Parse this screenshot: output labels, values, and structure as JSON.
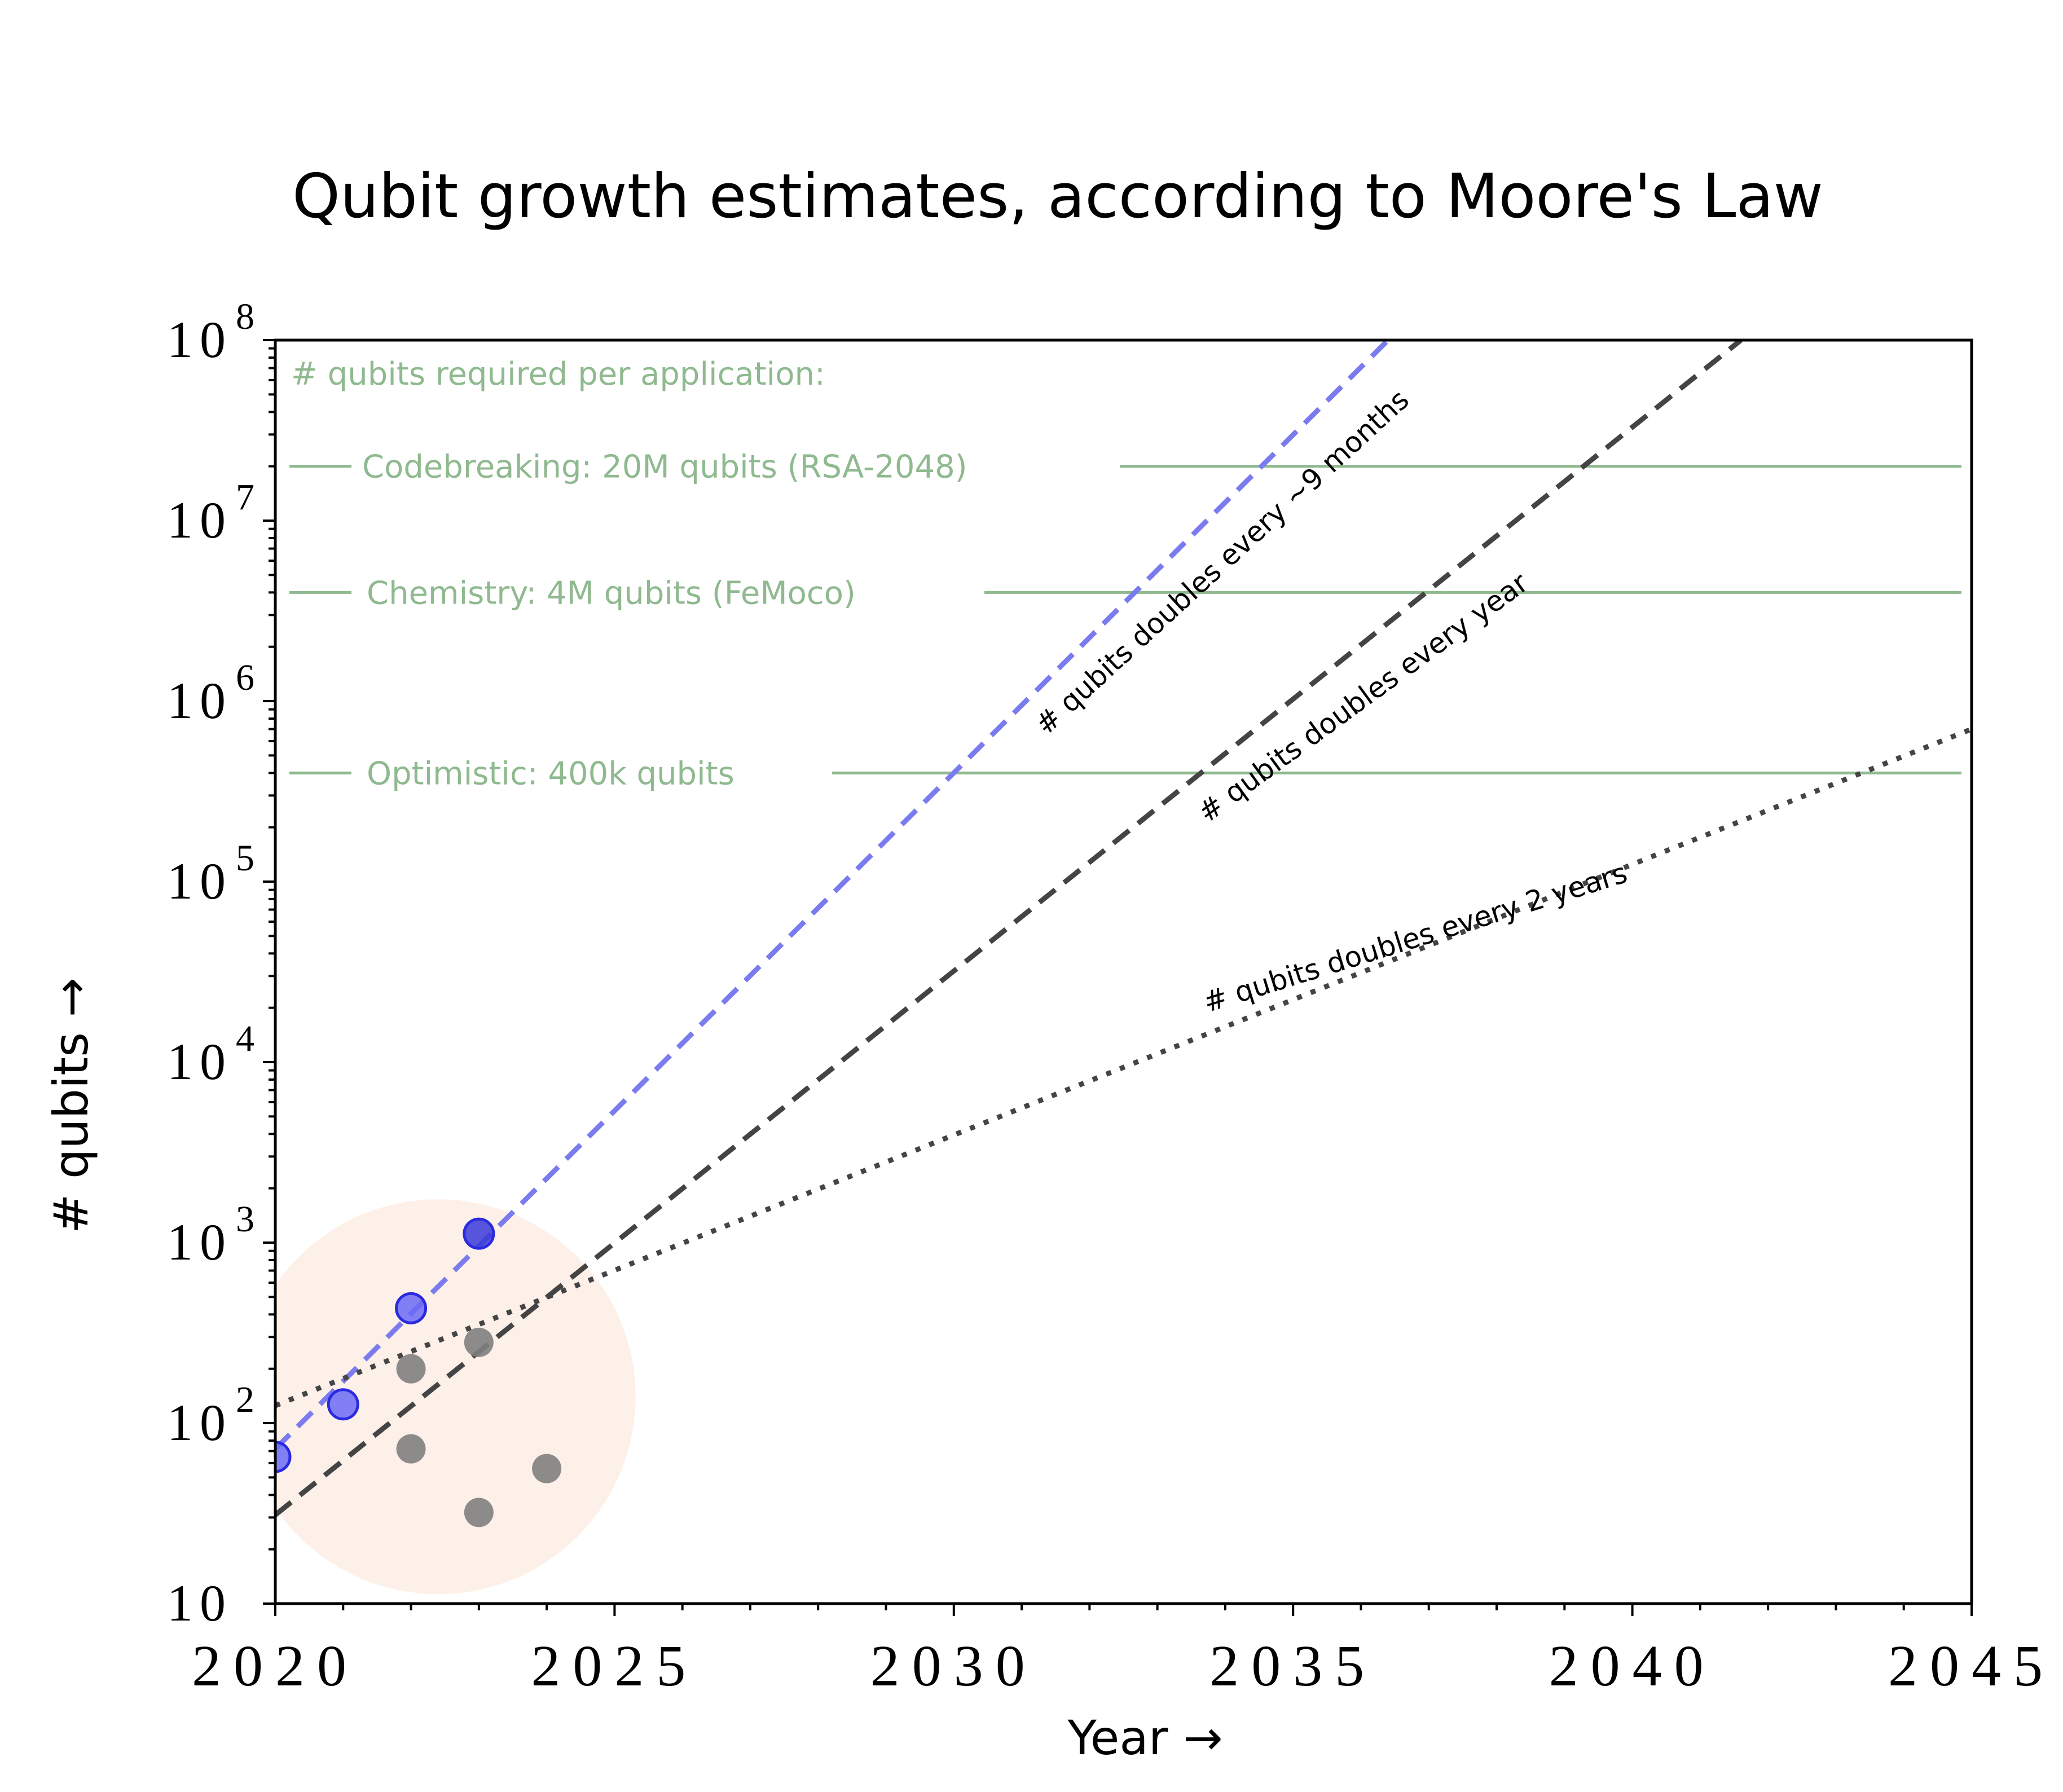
{
  "chart_data": {
    "type": "scatter",
    "title": "Qubit growth estimates, according to Moore's Law",
    "xlabel": "Year →",
    "ylabel": "# qubits →",
    "xlim": [
      2020,
      2045
    ],
    "ylim": [
      10,
      100000000
    ],
    "yscale": "log",
    "grid": false,
    "x_ticks": [
      {
        "value": 2020,
        "label": "2020"
      },
      {
        "value": 2025,
        "label": "2025"
      },
      {
        "value": 2030,
        "label": "2030"
      },
      {
        "value": 2035,
        "label": "2035"
      },
      {
        "value": 2040,
        "label": "2040"
      },
      {
        "value": 2045,
        "label": "2045"
      }
    ],
    "y_ticks": [
      {
        "value": 10,
        "base": "10",
        "exp": ""
      },
      {
        "value": 100,
        "base": "10",
        "exp": "2"
      },
      {
        "value": 1000,
        "base": "10",
        "exp": "3"
      },
      {
        "value": 10000,
        "base": "10",
        "exp": "4"
      },
      {
        "value": 100000,
        "base": "10",
        "exp": "5"
      },
      {
        "value": 1000000,
        "base": "10",
        "exp": "6"
      },
      {
        "value": 10000000,
        "base": "10",
        "exp": "7"
      },
      {
        "value": 100000000,
        "base": "10",
        "exp": "8"
      }
    ],
    "applications_header": "# qubits required per application:",
    "applications": [
      {
        "label": "Codebreaking: 20M qubits (RSA-2048)",
        "value": 20000000
      },
      {
        "label": "Chemistry: 4M qubits (FeMoco)",
        "value": 4000000
      },
      {
        "label": "Optimistic: 400k qubits",
        "value": 400000
      }
    ],
    "trend_lines": [
      {
        "label": "# qubits doubles every ~9 months",
        "style": "dashed",
        "color": "#7b7bf0",
        "x": [
          2020,
          2036.4
        ],
        "y": [
          72,
          100000000
        ]
      },
      {
        "label": "# qubits doubles every year",
        "style": "dashed",
        "color": "#444444",
        "x": [
          2020,
          2041.6
        ],
        "y": [
          31,
          100000000
        ]
      },
      {
        "label": "# qubits doubles every 2 years",
        "style": "dotted",
        "color": "#444444",
        "x": [
          2020,
          2045
        ],
        "y": [
          125,
          700000
        ]
      }
    ],
    "series": [
      {
        "color": "#6b6bf5",
        "points": [
          {
            "x": 2020,
            "y": 65
          },
          {
            "x": 2021,
            "y": 127
          },
          {
            "x": 2022,
            "y": 433
          },
          {
            "x": 2023,
            "y": 1121
          }
        ]
      },
      {
        "color": "#808080",
        "points": [
          {
            "x": 2022,
            "y": 200
          },
          {
            "x": 2022,
            "y": 72
          },
          {
            "x": 2023,
            "y": 280
          },
          {
            "x": 2023,
            "y": 32
          },
          {
            "x": 2024,
            "y": 56
          }
        ]
      }
    ],
    "highlight": {
      "color": "#fdf0e8"
    }
  }
}
